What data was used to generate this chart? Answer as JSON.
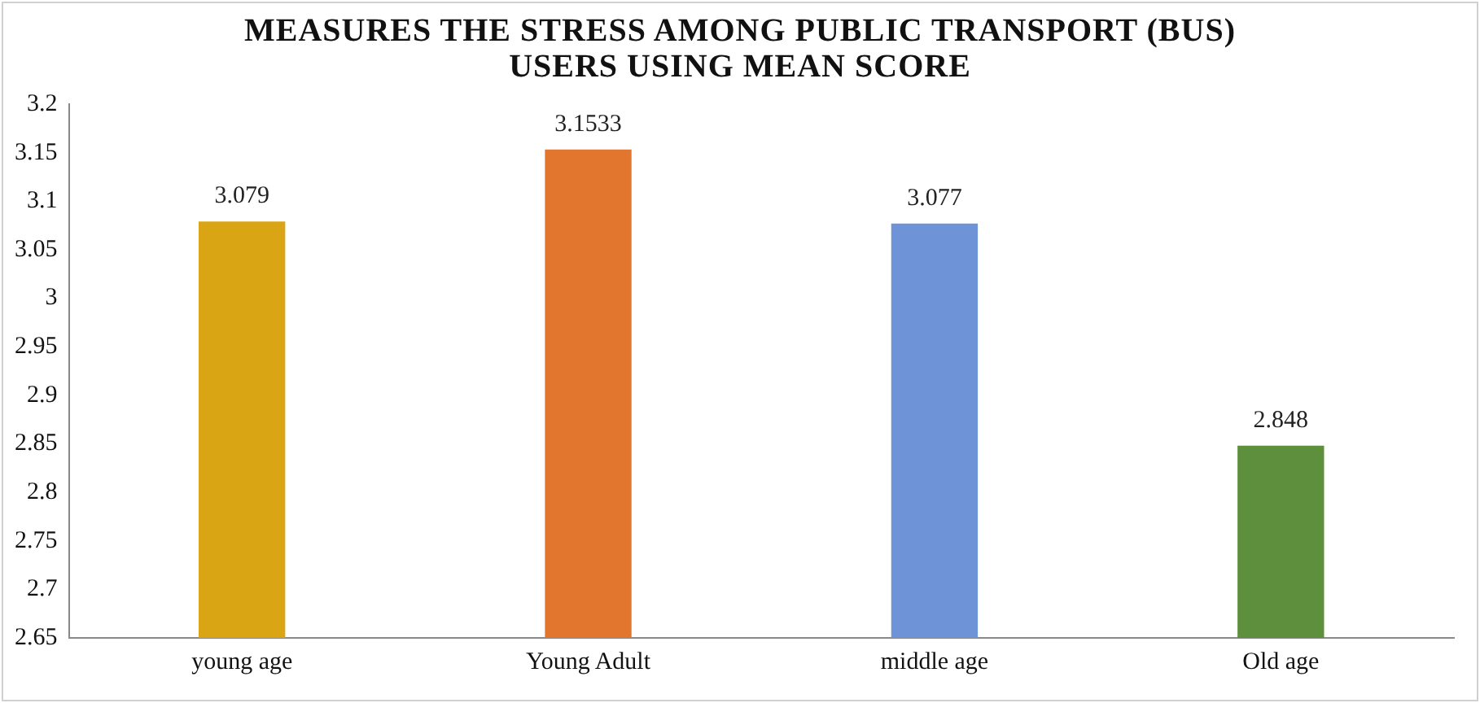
{
  "chart_data": {
    "type": "bar",
    "title": "MEASURES THE STRESS AMONG PUBLIC TRANSPORT (BUS) USERS USING MEAN SCORE",
    "categories": [
      "young age",
      "Young Adult",
      "middle age",
      "Old age"
    ],
    "values": [
      3.079,
      3.1533,
      3.077,
      2.848
    ],
    "colors": [
      "#d9a514",
      "#e2762e",
      "#6e93d6",
      "#5e8f3c"
    ],
    "ylim": [
      2.65,
      3.2
    ],
    "yticks": [
      2.65,
      2.7,
      2.75,
      2.8,
      2.85,
      2.9,
      2.95,
      3,
      3.05,
      3.1,
      3.15,
      3.2
    ],
    "grid": false,
    "legend": false,
    "data_labels": true
  }
}
